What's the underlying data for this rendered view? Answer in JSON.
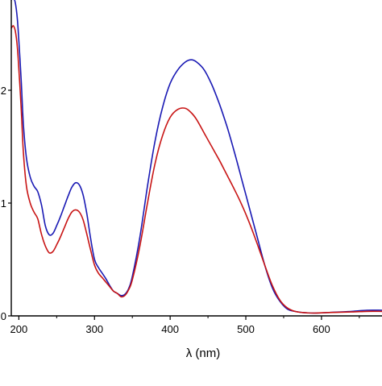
{
  "chart_data": {
    "type": "line",
    "title": "",
    "xlabel": "λ (nm)",
    "ylabel": "",
    "xlim": [
      190,
      680
    ],
    "ylim": [
      0,
      2.8
    ],
    "x_ticks": [
      200,
      300,
      400,
      500,
      600
    ],
    "x_tick_labels": [
      "200",
      "300",
      "400",
      "500",
      "600"
    ],
    "y_ticks": [
      0,
      1,
      2
    ],
    "y_tick_labels": [
      "0",
      "1",
      "2"
    ],
    "grid": false,
    "legend": "none",
    "series": [
      {
        "color": "#1a1ab4",
        "x": [
          190,
          193,
          196,
          199,
          203,
          206,
          210,
          215,
          220,
          225,
          230,
          235,
          240,
          245,
          250,
          255,
          260,
          265,
          270,
          275,
          280,
          285,
          290,
          295,
          300,
          305,
          310,
          315,
          320,
          325,
          330,
          335,
          340,
          345,
          350,
          360,
          370,
          380,
          390,
          400,
          410,
          420,
          428,
          435,
          445,
          455,
          465,
          475,
          485,
          495,
          505,
          515,
          525,
          535,
          545,
          555,
          565,
          575,
          590,
          610,
          640,
          660,
          680
        ],
        "y": [
          2.8,
          2.82,
          2.75,
          2.55,
          2.1,
          1.7,
          1.4,
          1.23,
          1.15,
          1.1,
          0.98,
          0.8,
          0.72,
          0.73,
          0.8,
          0.88,
          0.97,
          1.06,
          1.14,
          1.18,
          1.16,
          1.07,
          0.9,
          0.68,
          0.5,
          0.43,
          0.38,
          0.33,
          0.27,
          0.22,
          0.2,
          0.18,
          0.19,
          0.24,
          0.35,
          0.7,
          1.15,
          1.55,
          1.85,
          2.06,
          2.18,
          2.25,
          2.27,
          2.25,
          2.18,
          2.05,
          1.88,
          1.68,
          1.45,
          1.2,
          0.95,
          0.7,
          0.45,
          0.25,
          0.13,
          0.06,
          0.04,
          0.03,
          0.025,
          0.03,
          0.04,
          0.05,
          0.05
        ]
      },
      {
        "color": "#c81414",
        "x": [
          190,
          193,
          196,
          199,
          203,
          206,
          210,
          215,
          220,
          225,
          230,
          235,
          240,
          245,
          250,
          255,
          260,
          265,
          270,
          275,
          280,
          285,
          290,
          295,
          300,
          305,
          310,
          315,
          320,
          325,
          330,
          335,
          340,
          345,
          350,
          360,
          370,
          380,
          390,
          400,
          410,
          420,
          428,
          435,
          445,
          455,
          465,
          475,
          485,
          495,
          505,
          515,
          525,
          535,
          545,
          555,
          565,
          575,
          590,
          610,
          640,
          660,
          680
        ],
        "y": [
          2.55,
          2.57,
          2.5,
          2.3,
          1.85,
          1.45,
          1.15,
          1.0,
          0.92,
          0.86,
          0.72,
          0.62,
          0.56,
          0.57,
          0.63,
          0.7,
          0.78,
          0.86,
          0.92,
          0.94,
          0.92,
          0.85,
          0.72,
          0.58,
          0.45,
          0.38,
          0.34,
          0.3,
          0.26,
          0.22,
          0.2,
          0.17,
          0.18,
          0.23,
          0.32,
          0.62,
          1.0,
          1.35,
          1.6,
          1.76,
          1.83,
          1.84,
          1.8,
          1.74,
          1.62,
          1.5,
          1.38,
          1.25,
          1.12,
          0.98,
          0.82,
          0.64,
          0.45,
          0.27,
          0.14,
          0.07,
          0.04,
          0.03,
          0.025,
          0.03,
          0.035,
          0.04,
          0.04
        ]
      }
    ]
  }
}
